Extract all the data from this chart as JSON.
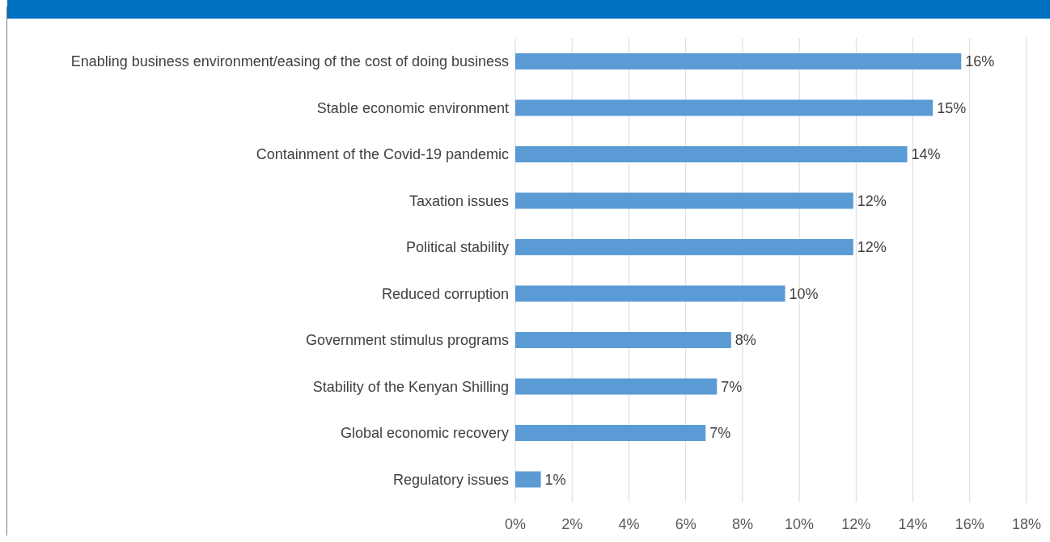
{
  "chart_data": {
    "type": "bar",
    "orientation": "horizontal",
    "categories": [
      "Enabling business environment/easing of the cost of doing business",
      "Stable economic environment",
      "Containment of the Covid-19 pandemic",
      "Taxation issues",
      "Political stability",
      "Reduced corruption",
      "Government stimulus programs",
      "Stability of the Kenyan Shilling",
      "Global economic recovery",
      "Regulatory issues"
    ],
    "values": [
      15.7,
      14.7,
      13.8,
      11.9,
      11.9,
      9.5,
      7.6,
      7.1,
      6.7,
      0.9
    ],
    "value_labels": [
      "16%",
      "15%",
      "14%",
      "12%",
      "12%",
      "10%",
      "8%",
      "7%",
      "7%",
      "1%"
    ],
    "color": "#5b9bd5",
    "xlim": [
      0,
      18
    ],
    "xticks": [
      {
        "value": 0,
        "label": "0%"
      },
      {
        "value": 2,
        "label": "2%"
      },
      {
        "value": 4,
        "label": "4%"
      },
      {
        "value": 6,
        "label": "6%"
      },
      {
        "value": 8,
        "label": "8%"
      },
      {
        "value": 10,
        "label": "10%"
      },
      {
        "value": 12,
        "label": "12%"
      },
      {
        "value": 14,
        "label": "14%"
      },
      {
        "value": 16,
        "label": "16%"
      },
      {
        "value": 18,
        "label": "18%"
      }
    ],
    "grid": "x"
  }
}
